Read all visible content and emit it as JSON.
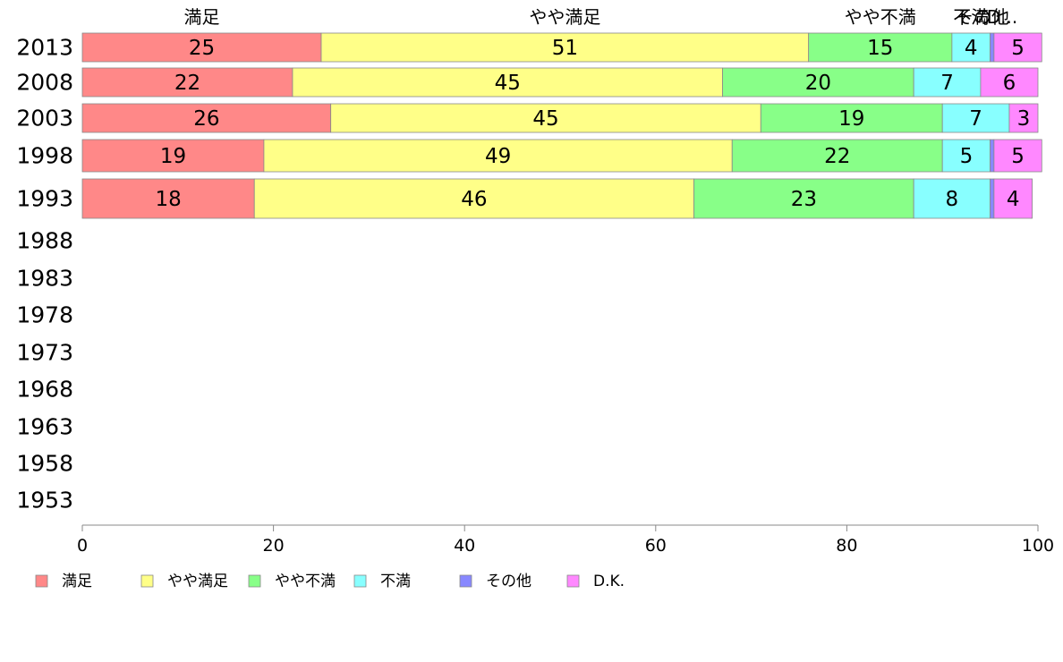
{
  "chart_data": {
    "type": "bar",
    "orientation": "horizontal",
    "stacked": true,
    "categories": [
      "2013",
      "2008",
      "2003",
      "1998",
      "1993",
      "1988",
      "1983",
      "1978",
      "1973",
      "1968",
      "1963",
      "1958",
      "1953"
    ],
    "series": [
      {
        "name": "満足",
        "color": "#ff8888",
        "values": [
          25,
          22,
          26,
          19,
          18,
          null,
          null,
          null,
          null,
          null,
          null,
          null,
          null
        ]
      },
      {
        "name": "やや満足",
        "color": "#ffff88",
        "values": [
          51,
          45,
          45,
          49,
          46,
          null,
          null,
          null,
          null,
          null,
          null,
          null,
          null
        ]
      },
      {
        "name": "やや不満",
        "color": "#88ff88",
        "values": [
          15,
          20,
          19,
          22,
          23,
          null,
          null,
          null,
          null,
          null,
          null,
          null,
          null
        ]
      },
      {
        "name": "不満",
        "color": "#88ffff",
        "values": [
          4,
          7,
          7,
          5,
          8,
          null,
          null,
          null,
          null,
          null,
          null,
          null,
          null
        ]
      },
      {
        "name": "その他",
        "color": "#8888ff",
        "values": [
          0.4,
          0,
          0,
          0.4,
          0.4,
          null,
          null,
          null,
          null,
          null,
          null,
          null,
          null
        ]
      },
      {
        "name": "D.K.",
        "color": "#ff88ff",
        "values": [
          5,
          6,
          3,
          5,
          4,
          null,
          null,
          null,
          null,
          null,
          null,
          null,
          null
        ]
      }
    ],
    "top_labels": [
      "満足",
      "やや満足",
      "やや不満",
      "不満",
      "その他",
      "D..."
    ],
    "xlim": [
      0,
      100
    ],
    "xticks": [
      "0",
      "20",
      "40",
      "60",
      "80",
      "100"
    ],
    "legend_position": "bottom-left",
    "grid": false
  }
}
